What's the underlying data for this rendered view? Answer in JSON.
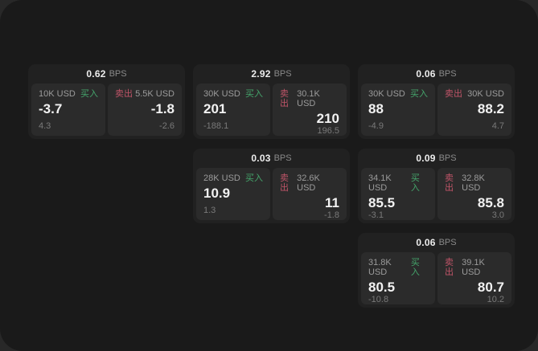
{
  "theme": {
    "buy_color": "#45a56b",
    "sell_color": "#bf5468",
    "window_bg": "#1a1a1a",
    "card_bg": "#212121",
    "panel_bg": "#2b2b2b"
  },
  "cards": [
    {
      "bps": "0.62",
      "bps_unit": "BPS",
      "row": 1,
      "col": 1,
      "buy": {
        "amount": "10K USD",
        "label": "买入",
        "price": "-3.7",
        "delta": "4.3"
      },
      "sell": {
        "amount": "5.5K USD",
        "label": "卖出",
        "price": "-1.8",
        "delta": "-2.6"
      }
    },
    {
      "bps": "2.92",
      "bps_unit": "BPS",
      "row": 1,
      "col": 2,
      "buy": {
        "amount": "30K USD",
        "label": "买入",
        "price": "201",
        "delta": "-188.1"
      },
      "sell": {
        "amount": "30.1K USD",
        "label": "卖出",
        "price": "210",
        "delta": "196.5"
      }
    },
    {
      "bps": "0.06",
      "bps_unit": "BPS",
      "row": 1,
      "col": 3,
      "buy": {
        "amount": "30K USD",
        "label": "买入",
        "price": "88",
        "delta": "-4.9"
      },
      "sell": {
        "amount": "30K USD",
        "label": "卖出",
        "price": "88.2",
        "delta": "4.7"
      }
    },
    {
      "bps": "0.03",
      "bps_unit": "BPS",
      "row": 2,
      "col": 2,
      "buy": {
        "amount": "28K USD",
        "label": "买入",
        "price": "10.9",
        "delta": "1.3"
      },
      "sell": {
        "amount": "32.6K USD",
        "label": "卖出",
        "price": "11",
        "delta": "-1.8"
      }
    },
    {
      "bps": "0.09",
      "bps_unit": "BPS",
      "row": 2,
      "col": 3,
      "buy": {
        "amount": "34.1K USD",
        "label": "买入",
        "price": "85.5",
        "delta": "-3.1"
      },
      "sell": {
        "amount": "32.8K USD",
        "label": "卖出",
        "price": "85.8",
        "delta": "3.0"
      }
    },
    {
      "bps": "0.06",
      "bps_unit": "BPS",
      "row": 3,
      "col": 3,
      "buy": {
        "amount": "31.8K USD",
        "label": "买入",
        "price": "80.5",
        "delta": "-10.8"
      },
      "sell": {
        "amount": "39.1K USD",
        "label": "卖出",
        "price": "80.7",
        "delta": "10.2"
      }
    }
  ]
}
